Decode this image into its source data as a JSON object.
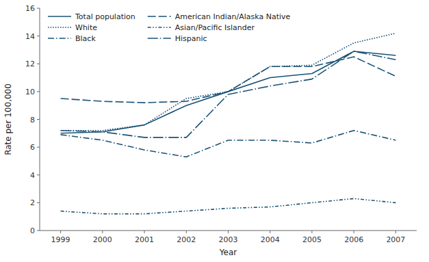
{
  "chart_data": {
    "type": "line",
    "xlabel": "Year",
    "ylabel": "Rate per 100,000",
    "x": [
      1999,
      2000,
      2001,
      2002,
      2003,
      2004,
      2005,
      2006,
      2007
    ],
    "xlim": [
      1998.5,
      2007.5
    ],
    "xticks": [
      1999,
      2000,
      2001,
      2002,
      2003,
      2004,
      2005,
      2006,
      2007
    ],
    "ylim": [
      0,
      16
    ],
    "yticks": [
      0,
      2,
      4,
      6,
      8,
      10,
      12,
      14,
      16
    ],
    "grid": false,
    "legend": "upper left",
    "series": [
      {
        "name": "Total population",
        "color": "#1a5276",
        "line_style": "solid",
        "values": [
          7.0,
          7.1,
          7.6,
          9.0,
          10.0,
          11.0,
          11.3,
          12.9,
          12.6
        ]
      },
      {
        "name": "White",
        "color": "#1a5276",
        "line_style": "dotted",
        "values": [
          7.2,
          7.2,
          7.6,
          9.5,
          10.0,
          11.8,
          11.9,
          13.5,
          14.2
        ]
      },
      {
        "name": "Black",
        "color": "#1a5276",
        "line_style": "dashdot",
        "values": [
          6.9,
          6.5,
          5.8,
          5.3,
          6.5,
          6.5,
          6.3,
          7.2,
          6.5
        ]
      },
      {
        "name": "American Indian/Alaska Native",
        "color": "#1a5276",
        "line_style": "dashed",
        "values": [
          9.5,
          9.3,
          9.2,
          9.3,
          10.0,
          11.8,
          11.8,
          12.5,
          11.1
        ]
      },
      {
        "name": "Asian/Pacific Islander",
        "color": "#1a5276",
        "line_style": "dashdotdot",
        "values": [
          1.4,
          1.2,
          1.2,
          1.4,
          1.6,
          1.7,
          2.0,
          2.3,
          2.0
        ]
      },
      {
        "name": "Hispanic",
        "color": "#1a5276",
        "line_style": "longdashdot",
        "values": [
          7.2,
          7.1,
          6.7,
          6.7,
          9.8,
          10.4,
          10.9,
          12.9,
          12.3
        ]
      }
    ]
  }
}
